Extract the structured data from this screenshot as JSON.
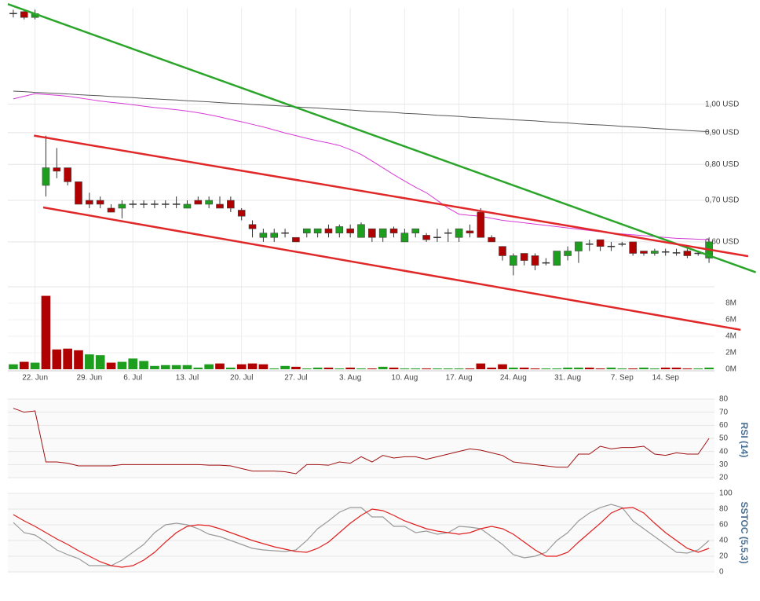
{
  "chart_data": {
    "type": "candlestick",
    "categories": [
      null,
      null,
      "22. Jun",
      null,
      null,
      null,
      null,
      "29. Jun",
      null,
      null,
      null,
      "6. Jul",
      null,
      null,
      null,
      null,
      "13. Jul",
      null,
      null,
      null,
      null,
      "20. Jul",
      null,
      null,
      null,
      null,
      "27. Jul",
      null,
      null,
      null,
      null,
      "3. Aug",
      null,
      null,
      null,
      null,
      "10. Aug",
      null,
      null,
      null,
      null,
      "17. Aug",
      null,
      null,
      null,
      null,
      "24. Aug",
      null,
      null,
      null,
      null,
      "31. Aug",
      null,
      null,
      null,
      null,
      "7. Sep",
      null,
      null,
      null,
      "14. Sep",
      null,
      null,
      null,
      null
    ],
    "open": [
      1.4,
      1.41,
      1.38,
      0.74,
      0.79,
      0.79,
      0.75,
      0.7,
      0.7,
      0.68,
      0.68,
      0.69,
      0.69,
      0.69,
      0.69,
      0.69,
      0.68,
      0.7,
      0.69,
      0.69,
      0.7,
      0.675,
      0.64,
      0.61,
      0.61,
      0.62,
      0.61,
      0.62,
      0.62,
      0.63,
      0.62,
      0.63,
      0.61,
      0.63,
      0.61,
      0.63,
      0.6,
      0.62,
      0.615,
      0.61,
      0.62,
      0.61,
      0.625,
      0.67,
      0.61,
      0.59,
      0.55,
      0.575,
      0.57,
      0.555,
      0.55,
      0.57,
      0.58,
      0.595,
      0.605,
      0.59,
      0.595,
      0.6,
      0.58,
      0.575,
      0.578,
      0.576,
      0.58,
      0.575,
      0.565
    ],
    "high": [
      1.42,
      1.42,
      1.42,
      0.89,
      0.85,
      0.79,
      0.75,
      0.72,
      0.71,
      0.69,
      0.7,
      0.7,
      0.7,
      0.7,
      0.7,
      0.71,
      0.7,
      0.71,
      0.71,
      0.71,
      0.71,
      0.68,
      0.65,
      0.63,
      0.63,
      0.63,
      0.61,
      0.63,
      0.63,
      0.64,
      0.64,
      0.64,
      0.645,
      0.63,
      0.63,
      0.635,
      0.63,
      0.63,
      0.62,
      0.63,
      0.63,
      0.63,
      0.64,
      0.68,
      0.615,
      0.59,
      0.575,
      0.575,
      0.575,
      0.565,
      0.58,
      0.59,
      0.6,
      0.605,
      0.605,
      0.6,
      0.6,
      0.6,
      0.58,
      0.585,
      0.585,
      0.585,
      0.585,
      0.58,
      0.61
    ],
    "low": [
      1.38,
      1.37,
      1.37,
      0.71,
      0.76,
      0.74,
      0.69,
      0.68,
      0.68,
      0.67,
      0.655,
      0.68,
      0.68,
      0.68,
      0.68,
      0.68,
      0.68,
      0.69,
      0.68,
      0.68,
      0.67,
      0.65,
      0.61,
      0.6,
      0.6,
      0.61,
      0.6,
      0.61,
      0.61,
      0.61,
      0.61,
      0.61,
      0.61,
      0.6,
      0.6,
      0.61,
      0.6,
      0.61,
      0.6,
      0.6,
      0.6,
      0.6,
      0.61,
      0.61,
      0.6,
      0.56,
      0.53,
      0.55,
      0.54,
      0.55,
      0.55,
      0.56,
      0.555,
      0.58,
      0.58,
      0.58,
      0.59,
      0.57,
      0.57,
      0.57,
      0.57,
      0.57,
      0.565,
      0.57,
      0.555
    ],
    "close": [
      1.4,
      1.38,
      1.4,
      0.79,
      0.78,
      0.75,
      0.69,
      0.69,
      0.69,
      0.67,
      0.69,
      0.69,
      0.69,
      0.69,
      0.69,
      0.69,
      0.69,
      0.69,
      0.7,
      0.68,
      0.68,
      0.66,
      0.63,
      0.62,
      0.62,
      0.62,
      0.6,
      0.63,
      0.63,
      0.62,
      0.635,
      0.62,
      0.64,
      0.61,
      0.63,
      0.62,
      0.62,
      0.63,
      0.605,
      0.61,
      0.62,
      0.63,
      0.62,
      0.61,
      0.6,
      0.57,
      0.57,
      0.56,
      0.55,
      0.555,
      0.58,
      0.58,
      0.6,
      0.595,
      0.59,
      0.59,
      0.595,
      0.575,
      0.575,
      0.58,
      0.578,
      0.576,
      0.57,
      0.575,
      0.6
    ],
    "up_color": "#1e9e1e",
    "down_color": "#b00000",
    "log_scale": true,
    "grid": true,
    "ylim": [
      0.508,
      1.43
    ],
    "yticks": [
      {
        "value": 0.6,
        "label": "0,60 USD"
      },
      {
        "value": 0.7,
        "label": "0,70 USD"
      },
      {
        "value": 0.8,
        "label": "0,80 USD"
      },
      {
        "value": 0.9,
        "label": "0,90 USD"
      },
      {
        "value": 1.0,
        "label": "1,00 USD"
      }
    ],
    "overlays": [
      {
        "color": "#555555",
        "values": [
          1.05,
          1.048,
          1.045,
          1.043,
          1.041,
          1.039,
          1.036,
          1.034,
          1.032,
          1.029,
          1.027,
          1.025,
          1.022,
          1.02,
          1.018,
          1.016,
          1.013,
          1.011,
          1.009,
          1.006,
          1.004,
          1.002,
          0.999,
          0.997,
          0.995,
          0.993,
          0.99,
          0.988,
          0.986,
          0.983,
          0.981,
          0.979,
          0.976,
          0.974,
          0.972,
          0.97,
          0.967,
          0.965,
          0.963,
          0.96,
          0.958,
          0.956,
          0.953,
          0.951,
          0.949,
          0.947,
          0.944,
          0.942,
          0.94,
          0.937,
          0.935,
          0.933,
          0.93,
          0.928,
          0.926,
          0.924,
          0.921,
          0.919,
          0.917,
          0.914,
          0.912,
          0.91,
          0.907,
          0.905,
          0.903
        ]
      },
      {
        "color": "#d63ad6",
        "values": [
          1.02,
          1.03,
          1.04,
          1.037,
          1.034,
          1.03,
          1.024,
          1.018,
          1.012,
          1.007,
          1.003,
          0.998,
          0.993,
          0.988,
          0.984,
          0.98,
          0.975,
          0.969,
          0.962,
          0.954,
          0.945,
          0.937,
          0.928,
          0.919,
          0.909,
          0.899,
          0.89,
          0.881,
          0.873,
          0.866,
          0.858,
          0.845,
          0.83,
          0.81,
          0.79,
          0.77,
          0.752,
          0.735,
          0.72,
          0.7,
          0.68,
          0.665,
          0.662,
          0.66,
          0.655,
          0.65,
          0.647,
          0.644,
          0.641,
          0.638,
          0.635,
          0.632,
          0.629,
          0.626,
          0.623,
          0.62,
          0.618,
          0.616,
          0.614,
          0.612,
          0.61,
          0.608,
          0.607,
          0.606,
          0.605
        ]
      }
    ],
    "trendlines": [
      {
        "color": "#2aa52a",
        "x": [
          -0.5,
          68.3
        ],
        "y": [
          1.45,
          0.536
        ]
      },
      {
        "color": "#e02828",
        "x": [
          1.9,
          67.6
        ],
        "y": [
          0.89,
          0.569
        ]
      },
      {
        "color": "#e02828",
        "x": [
          2.75,
          66.9
        ],
        "y": [
          0.682,
          0.433
        ]
      }
    ],
    "volume": {
      "values": [
        0.6,
        0.9,
        0.8,
        8.9,
        2.4,
        2.5,
        2.3,
        1.8,
        1.7,
        0.8,
        0.9,
        1.3,
        1.0,
        0.4,
        0.5,
        0.5,
        0.5,
        0.2,
        0.6,
        0.7,
        0.2,
        0.6,
        0.7,
        0.6,
        0.1,
        0.4,
        0.3,
        0.1,
        0.2,
        0.2,
        0.1,
        0.2,
        0.1,
        0.1,
        0.3,
        0.2,
        0.1,
        0.1,
        0.1,
        0.1,
        0.1,
        0.1,
        0.1,
        0.7,
        0.2,
        0.6,
        0.2,
        0.2,
        0.1,
        0.1,
        0.1,
        0.2,
        0.2,
        0.2,
        0.1,
        0.2,
        0.1,
        0.1,
        0.2,
        0.1,
        0.2,
        0.2,
        0.1,
        0.1,
        0.2
      ],
      "ylim": [
        0,
        10
      ],
      "yticks": [
        {
          "value": 0,
          "label": "0M"
        },
        {
          "value": 2,
          "label": "2M"
        },
        {
          "value": 4,
          "label": "4M"
        },
        {
          "value": 6,
          "label": "6M"
        },
        {
          "value": 8,
          "label": "8M"
        }
      ]
    },
    "rsi": {
      "label": "RSI (14)",
      "color": "#a01010",
      "values": [
        73,
        70,
        71,
        32,
        32,
        31,
        29,
        29,
        29,
        29,
        30,
        30,
        30,
        30,
        30,
        30,
        30,
        30,
        29.5,
        29.5,
        29,
        27,
        25,
        25,
        25,
        24.5,
        23,
        30,
        30,
        29.5,
        32,
        31,
        36,
        32,
        37,
        35,
        36,
        36,
        34,
        36,
        38,
        40,
        42,
        41,
        39,
        37,
        32,
        31,
        30,
        29,
        28,
        28,
        38,
        38,
        44,
        42,
        43,
        43,
        44,
        38,
        37,
        39,
        38,
        38,
        50
      ],
      "ylim": [
        20,
        80
      ],
      "yticks": [
        20,
        30,
        40,
        50,
        60,
        70,
        80
      ]
    },
    "sstoc": {
      "label": "SSTOC (5,5,3)",
      "ylim": [
        0,
        100
      ],
      "yticks": [
        0,
        20,
        40,
        60,
        80,
        100
      ],
      "series": [
        {
          "color": "#9a9a9a",
          "values": [
            63,
            50,
            47,
            38,
            28,
            22,
            17,
            8,
            8,
            8,
            15,
            25,
            35,
            50,
            60,
            62,
            60,
            55,
            48,
            45,
            40,
            35,
            30,
            28,
            27,
            26,
            28,
            40,
            55,
            65,
            76,
            82,
            82,
            70,
            70,
            58,
            58,
            50,
            52,
            48,
            50,
            58,
            57,
            55,
            45,
            35,
            22,
            18,
            20,
            25,
            40,
            50,
            65,
            75,
            82,
            86,
            82,
            65,
            55,
            45,
            35,
            25,
            24,
            28,
            40
          ]
        },
        {
          "color": "#e02020",
          "values": [
            73,
            65,
            58,
            50,
            42,
            35,
            27,
            20,
            13,
            8,
            6,
            8,
            15,
            25,
            38,
            50,
            58,
            60,
            59,
            55,
            50,
            45,
            40,
            36,
            32,
            29,
            26,
            25,
            30,
            38,
            50,
            62,
            72,
            80,
            78,
            72,
            65,
            60,
            55,
            52,
            50,
            48,
            50,
            55,
            58,
            55,
            48,
            38,
            28,
            20,
            20,
            25,
            38,
            50,
            62,
            75,
            81,
            82,
            75,
            62,
            50,
            40,
            30,
            25,
            30
          ]
        }
      ]
    }
  }
}
